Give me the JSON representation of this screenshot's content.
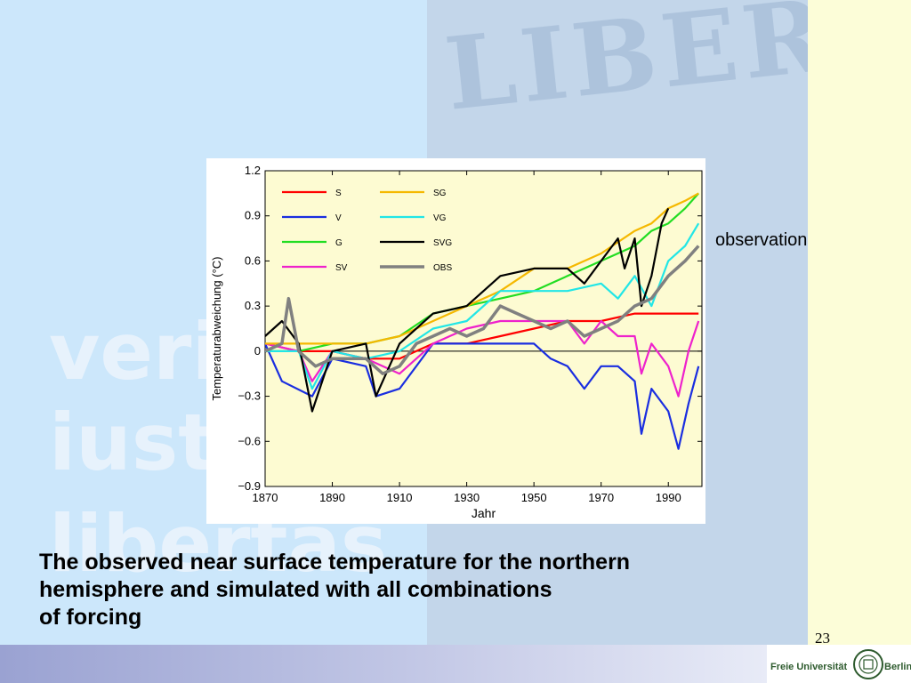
{
  "slide": {
    "annotation": "observation",
    "caption_lines": [
      "The observed near surface temperature for the northern",
      "hemisphere and simulated with all combinations",
      "of forcing"
    ],
    "page_number": "23",
    "watermark": "LIBERT",
    "motto_lines": [
      "verit",
      "iust",
      "libertas"
    ],
    "logo_text_left": "Freie Universität",
    "logo_text_right": "Berlin",
    "colors": {
      "background_left": "#cce7fb",
      "background_right": "#fcfdd8",
      "plot_background": "#fdfbd2",
      "footer": "#9aa2d2"
    }
  },
  "chart_data": {
    "type": "line",
    "title": "",
    "xlabel": "Jahr",
    "ylabel": "Temperaturabweichung (°C)",
    "xlim": [
      1870,
      2000
    ],
    "ylim": [
      -0.9,
      1.2
    ],
    "xticks": [
      1870,
      1890,
      1910,
      1930,
      1950,
      1970,
      1990
    ],
    "yticks": [
      -0.9,
      -0.6,
      -0.3,
      0,
      0.3,
      0.6,
      0.9,
      1.2
    ],
    "zero_line": true,
    "legend_position": "top-left",
    "series": [
      {
        "name": "S",
        "color": "#ff0000",
        "x": [
          1870,
          1880,
          1890,
          1900,
          1910,
          1920,
          1930,
          1940,
          1950,
          1960,
          1970,
          1980,
          1990,
          1999
        ],
        "y": [
          0.05,
          0.0,
          0.0,
          -0.05,
          -0.05,
          0.05,
          0.05,
          0.1,
          0.15,
          0.2,
          0.2,
          0.25,
          0.25,
          0.25
        ]
      },
      {
        "name": "V",
        "color": "#1a2ee0",
        "x": [
          1870,
          1875,
          1884,
          1890,
          1900,
          1903,
          1910,
          1920,
          1930,
          1940,
          1950,
          1955,
          1960,
          1965,
          1970,
          1975,
          1980,
          1982,
          1985,
          1990,
          1993,
          1996,
          1999
        ],
        "y": [
          0.05,
          -0.2,
          -0.3,
          -0.05,
          -0.1,
          -0.3,
          -0.25,
          0.05,
          0.05,
          0.05,
          0.05,
          -0.05,
          -0.1,
          -0.25,
          -0.1,
          -0.1,
          -0.2,
          -0.55,
          -0.25,
          -0.4,
          -0.65,
          -0.35,
          -0.1
        ]
      },
      {
        "name": "G",
        "color": "#22dd22",
        "x": [
          1870,
          1880,
          1890,
          1900,
          1910,
          1920,
          1930,
          1940,
          1950,
          1960,
          1970,
          1980,
          1985,
          1990,
          1995,
          1999
        ],
        "y": [
          0.0,
          0.0,
          0.05,
          0.05,
          0.1,
          0.25,
          0.3,
          0.35,
          0.4,
          0.5,
          0.6,
          0.7,
          0.8,
          0.85,
          0.95,
          1.05
        ]
      },
      {
        "name": "SV",
        "color": "#ee22cc",
        "x": [
          1870,
          1880,
          1884,
          1890,
          1900,
          1910,
          1920,
          1930,
          1940,
          1950,
          1960,
          1965,
          1970,
          1975,
          1980,
          1982,
          1985,
          1990,
          1993,
          1996,
          1999
        ],
        "y": [
          0.05,
          0.0,
          -0.2,
          0.0,
          -0.05,
          -0.15,
          0.05,
          0.15,
          0.2,
          0.2,
          0.2,
          0.05,
          0.2,
          0.1,
          0.1,
          -0.15,
          0.05,
          -0.1,
          -0.3,
          0.0,
          0.2
        ]
      },
      {
        "name": "SG",
        "color": "#f5b800",
        "x": [
          1870,
          1880,
          1890,
          1900,
          1910,
          1920,
          1930,
          1940,
          1950,
          1960,
          1970,
          1980,
          1985,
          1990,
          1995,
          1999
        ],
        "y": [
          0.05,
          0.05,
          0.05,
          0.05,
          0.1,
          0.2,
          0.3,
          0.4,
          0.55,
          0.55,
          0.65,
          0.8,
          0.85,
          0.95,
          1.0,
          1.05
        ]
      },
      {
        "name": "VG",
        "color": "#22e6e6",
        "x": [
          1870,
          1880,
          1884,
          1890,
          1900,
          1910,
          1920,
          1930,
          1940,
          1950,
          1960,
          1970,
          1975,
          1980,
          1985,
          1990,
          1995,
          1999
        ],
        "y": [
          0.0,
          0.0,
          -0.25,
          0.0,
          -0.05,
          0.0,
          0.15,
          0.2,
          0.4,
          0.4,
          0.4,
          0.45,
          0.35,
          0.5,
          0.3,
          0.6,
          0.7,
          0.85
        ]
      },
      {
        "name": "SVG",
        "color": "#000000",
        "x": [
          1870,
          1875,
          1880,
          1884,
          1890,
          1900,
          1903,
          1910,
          1920,
          1930,
          1940,
          1950,
          1960,
          1965,
          1970,
          1975,
          1977,
          1980,
          1982,
          1985,
          1988,
          1990
        ],
        "y": [
          0.1,
          0.2,
          0.05,
          -0.4,
          0.0,
          0.05,
          -0.3,
          0.05,
          0.25,
          0.3,
          0.5,
          0.55,
          0.55,
          0.45,
          0.6,
          0.75,
          0.55,
          0.75,
          0.3,
          0.5,
          0.85,
          0.95
        ]
      },
      {
        "name": "OBS",
        "color": "#808080",
        "x": [
          1870,
          1875,
          1877,
          1880,
          1885,
          1890,
          1900,
          1905,
          1910,
          1915,
          1920,
          1925,
          1930,
          1935,
          1940,
          1945,
          1950,
          1955,
          1960,
          1965,
          1970,
          1975,
          1980,
          1985,
          1990,
          1995,
          1999
        ],
        "y": [
          0.0,
          0.05,
          0.35,
          0.0,
          -0.1,
          -0.05,
          -0.05,
          -0.15,
          -0.1,
          0.05,
          0.1,
          0.15,
          0.1,
          0.15,
          0.3,
          0.25,
          0.2,
          0.15,
          0.2,
          0.1,
          0.15,
          0.2,
          0.3,
          0.35,
          0.5,
          0.6,
          0.7
        ]
      }
    ]
  }
}
